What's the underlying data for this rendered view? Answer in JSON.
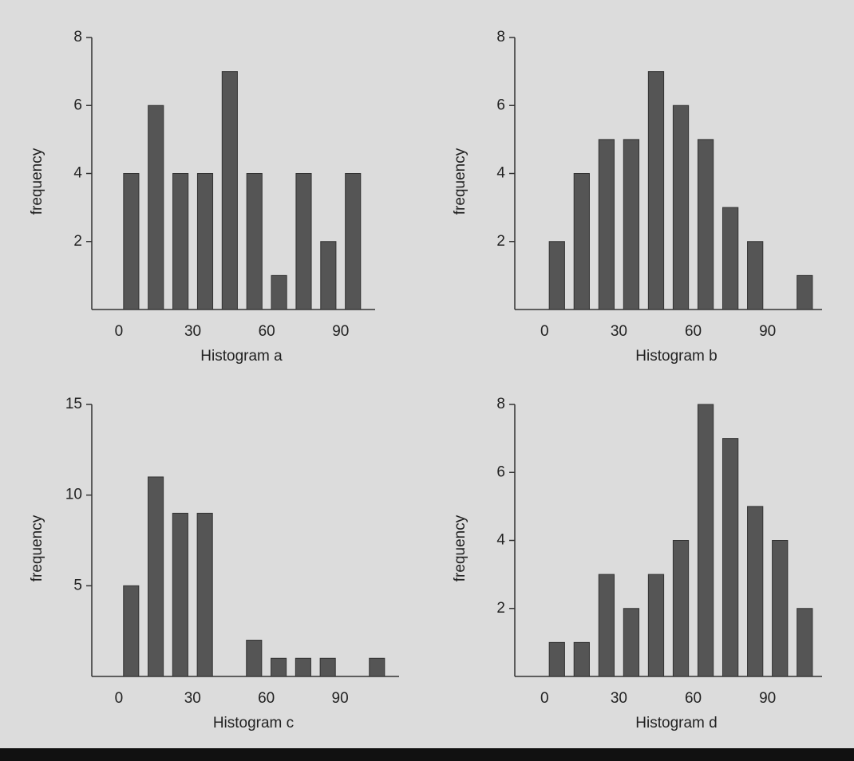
{
  "chart_data": [
    {
      "type": "histogram",
      "xlabel": "Histogram a",
      "ylabel": "frequency",
      "bins": [
        0,
        10,
        20,
        30,
        40,
        50,
        60,
        70,
        80,
        90,
        100
      ],
      "values": [
        4,
        6,
        4,
        4,
        7,
        4,
        1,
        4,
        2,
        4
      ],
      "color": "#555555",
      "xlim": [
        -11,
        104
      ],
      "xticks": [
        0,
        30,
        60,
        90
      ],
      "ylim": [
        0,
        8
      ],
      "yticks": [
        2,
        4,
        6,
        8
      ]
    },
    {
      "type": "histogram",
      "xlabel": "Histogram b",
      "ylabel": "frequency",
      "bins": [
        0,
        10,
        20,
        30,
        40,
        50,
        60,
        70,
        80,
        90,
        100,
        110
      ],
      "values": [
        2,
        4,
        5,
        5,
        7,
        6,
        5,
        3,
        2,
        0,
        1
      ],
      "color": "#555555",
      "xlim": [
        -12,
        112
      ],
      "xticks": [
        0,
        30,
        60,
        90
      ],
      "ylim": [
        0,
        8
      ],
      "yticks": [
        2,
        4,
        6,
        8
      ]
    },
    {
      "type": "histogram",
      "xlabel": "Histogram c",
      "ylabel": "frequency",
      "bins": [
        0,
        10,
        20,
        30,
        40,
        50,
        60,
        70,
        80,
        90,
        100,
        110
      ],
      "values": [
        5,
        11,
        9,
        9,
        0,
        2,
        1,
        1,
        1,
        0,
        1
      ],
      "color": "#555555",
      "xlim": [
        -11,
        114
      ],
      "xticks": [
        0,
        30,
        60,
        90
      ],
      "ylim": [
        0,
        15
      ],
      "yticks": [
        5,
        10,
        15
      ]
    },
    {
      "type": "histogram",
      "xlabel": "Histogram d",
      "ylabel": "frequency",
      "bins": [
        0,
        10,
        20,
        30,
        40,
        50,
        60,
        70,
        80,
        90,
        100,
        110
      ],
      "values": [
        1,
        1,
        3,
        2,
        3,
        4,
        8,
        7,
        5,
        4,
        2
      ],
      "color": "#555555",
      "xlim": [
        -12,
        112
      ],
      "xticks": [
        0,
        30,
        60,
        90
      ],
      "ylim": [
        0,
        8
      ],
      "yticks": [
        2,
        4,
        6,
        8
      ]
    }
  ]
}
